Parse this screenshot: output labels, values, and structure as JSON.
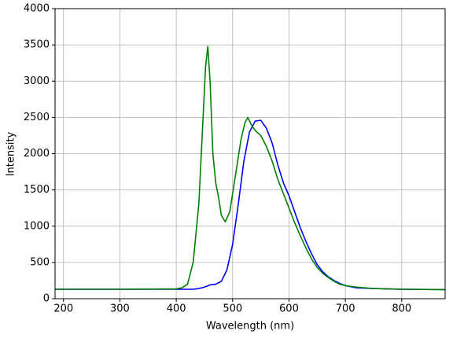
{
  "chart_data": {
    "type": "line",
    "xlabel": "Wavelength (nm)",
    "ylabel": "Intensity",
    "xlim": [
      185,
      877
    ],
    "ylim": [
      0,
      4000
    ],
    "xticks": [
      200,
      300,
      400,
      500,
      600,
      700,
      800
    ],
    "yticks": [
      0,
      500,
      1000,
      1500,
      2000,
      2500,
      3000,
      3500,
      4000
    ],
    "grid": true,
    "series": [
      {
        "color": "#0000ff",
        "x": [
          185,
          300,
          400,
          430,
          440,
          450,
          460,
          470,
          480,
          490,
          500,
          510,
          520,
          530,
          540,
          550,
          560,
          570,
          580,
          590,
          600,
          610,
          620,
          630,
          640,
          650,
          660,
          670,
          680,
          690,
          700,
          720,
          750,
          800,
          877
        ],
        "values": [
          130,
          130,
          130,
          130,
          140,
          160,
          190,
          200,
          240,
          400,
          750,
          1300,
          1900,
          2300,
          2450,
          2460,
          2350,
          2150,
          1850,
          1600,
          1420,
          1200,
          980,
          790,
          620,
          470,
          370,
          300,
          250,
          210,
          180,
          150,
          140,
          130,
          125
        ]
      },
      {
        "color": "#008000",
        "x": [
          185,
          300,
          400,
          410,
          420,
          430,
          440,
          447,
          452,
          456,
          460,
          465,
          470,
          475,
          480,
          487,
          495,
          505,
          515,
          522,
          527,
          533,
          540,
          550,
          560,
          570,
          580,
          590,
          600,
          610,
          620,
          630,
          640,
          650,
          660,
          670,
          680,
          690,
          700,
          720,
          750,
          800,
          877
        ],
        "values": [
          130,
          130,
          135,
          150,
          200,
          500,
          1300,
          2400,
          3200,
          3480,
          3000,
          2000,
          1600,
          1400,
          1150,
          1060,
          1200,
          1700,
          2200,
          2430,
          2500,
          2400,
          2320,
          2250,
          2100,
          1900,
          1650,
          1450,
          1250,
          1050,
          870,
          700,
          550,
          430,
          350,
          290,
          240,
          200,
          180,
          160,
          140,
          130,
          125
        ]
      }
    ]
  }
}
